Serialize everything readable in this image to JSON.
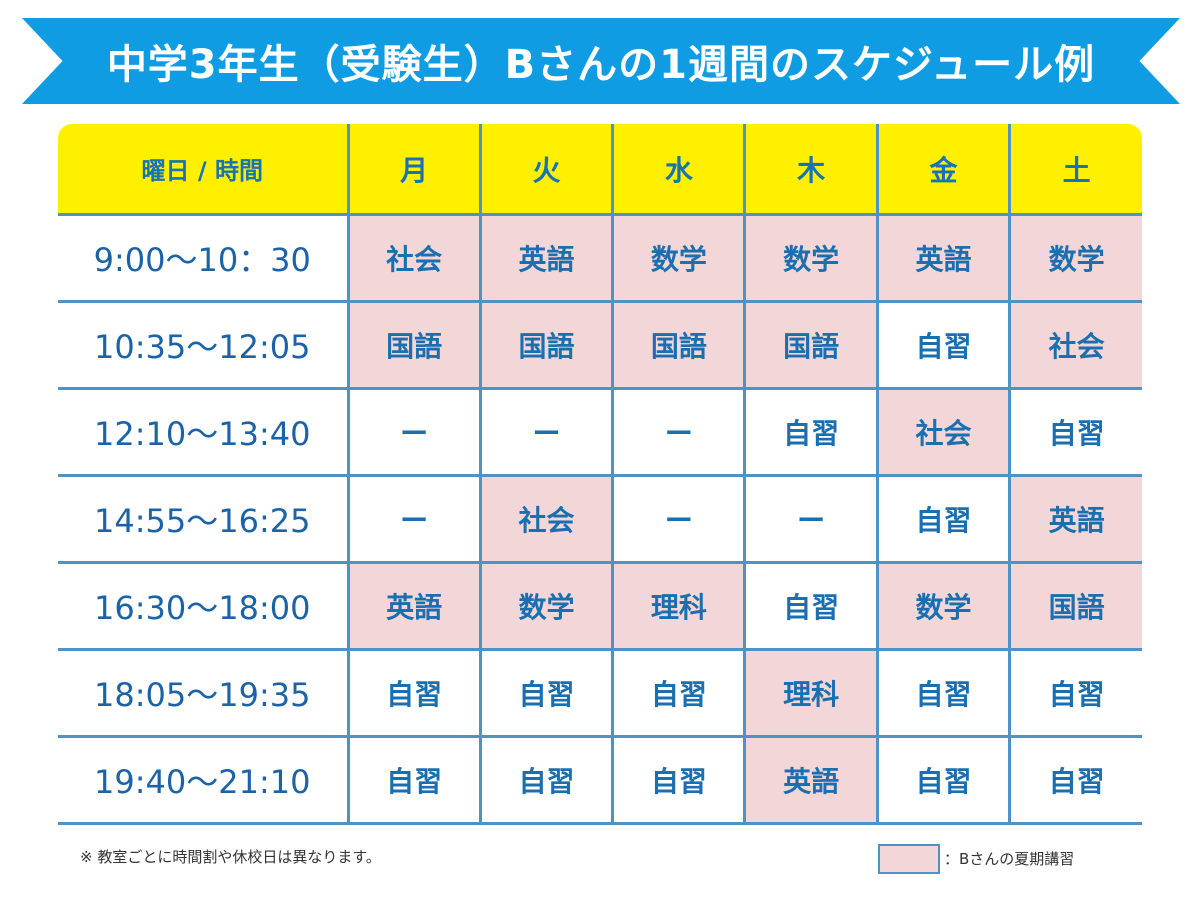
{
  "title": "中学3年生（受験生）Bさんの1週間のスケジュール例",
  "colors": {
    "banner": "#0f9ce3",
    "header": "#fff000",
    "highlight": "#f2d6d8",
    "text": "#1a6fb0",
    "grid": "#4e93c4"
  },
  "table": {
    "corner": "曜日 / 時間",
    "days": [
      "月",
      "火",
      "水",
      "木",
      "金",
      "土"
    ],
    "rows": [
      {
        "time": "9:00〜10：30",
        "cells": [
          {
            "text": "社会",
            "hl": true
          },
          {
            "text": "英語",
            "hl": true
          },
          {
            "text": "数学",
            "hl": true
          },
          {
            "text": "数学",
            "hl": true
          },
          {
            "text": "英語",
            "hl": true
          },
          {
            "text": "数学",
            "hl": true
          }
        ]
      },
      {
        "time": "10:35〜12:05",
        "cells": [
          {
            "text": "国語",
            "hl": true
          },
          {
            "text": "国語",
            "hl": true
          },
          {
            "text": "国語",
            "hl": true
          },
          {
            "text": "国語",
            "hl": true
          },
          {
            "text": "自習",
            "hl": false
          },
          {
            "text": "社会",
            "hl": true
          }
        ]
      },
      {
        "time": "12:10〜13:40",
        "cells": [
          {
            "text": "ー",
            "hl": false
          },
          {
            "text": "ー",
            "hl": false
          },
          {
            "text": "ー",
            "hl": false
          },
          {
            "text": "自習",
            "hl": false
          },
          {
            "text": "社会",
            "hl": true
          },
          {
            "text": "自習",
            "hl": false
          }
        ]
      },
      {
        "time": "14:55〜16:25",
        "cells": [
          {
            "text": "ー",
            "hl": false
          },
          {
            "text": "社会",
            "hl": true
          },
          {
            "text": "ー",
            "hl": false
          },
          {
            "text": "ー",
            "hl": false
          },
          {
            "text": "自習",
            "hl": false
          },
          {
            "text": "英語",
            "hl": true
          }
        ]
      },
      {
        "time": "16:30〜18:00",
        "cells": [
          {
            "text": "英語",
            "hl": true
          },
          {
            "text": "数学",
            "hl": true
          },
          {
            "text": "理科",
            "hl": true
          },
          {
            "text": "自習",
            "hl": false
          },
          {
            "text": "数学",
            "hl": true
          },
          {
            "text": "国語",
            "hl": true
          }
        ]
      },
      {
        "time": "18:05〜19:35",
        "cells": [
          {
            "text": "自習",
            "hl": false
          },
          {
            "text": "自習",
            "hl": false
          },
          {
            "text": "自習",
            "hl": false
          },
          {
            "text": "理科",
            "hl": true
          },
          {
            "text": "自習",
            "hl": false
          },
          {
            "text": "自習",
            "hl": false
          }
        ]
      },
      {
        "time": "19:40〜21:10",
        "cells": [
          {
            "text": "自習",
            "hl": false
          },
          {
            "text": "自習",
            "hl": false
          },
          {
            "text": "自習",
            "hl": false
          },
          {
            "text": "英語",
            "hl": true
          },
          {
            "text": "自習",
            "hl": false
          },
          {
            "text": "自習",
            "hl": false
          }
        ]
      }
    ]
  },
  "note": "※ 教室ごとに時間割や休校日は異なります。",
  "legend": {
    "label": "：Bさんの夏期講習"
  }
}
